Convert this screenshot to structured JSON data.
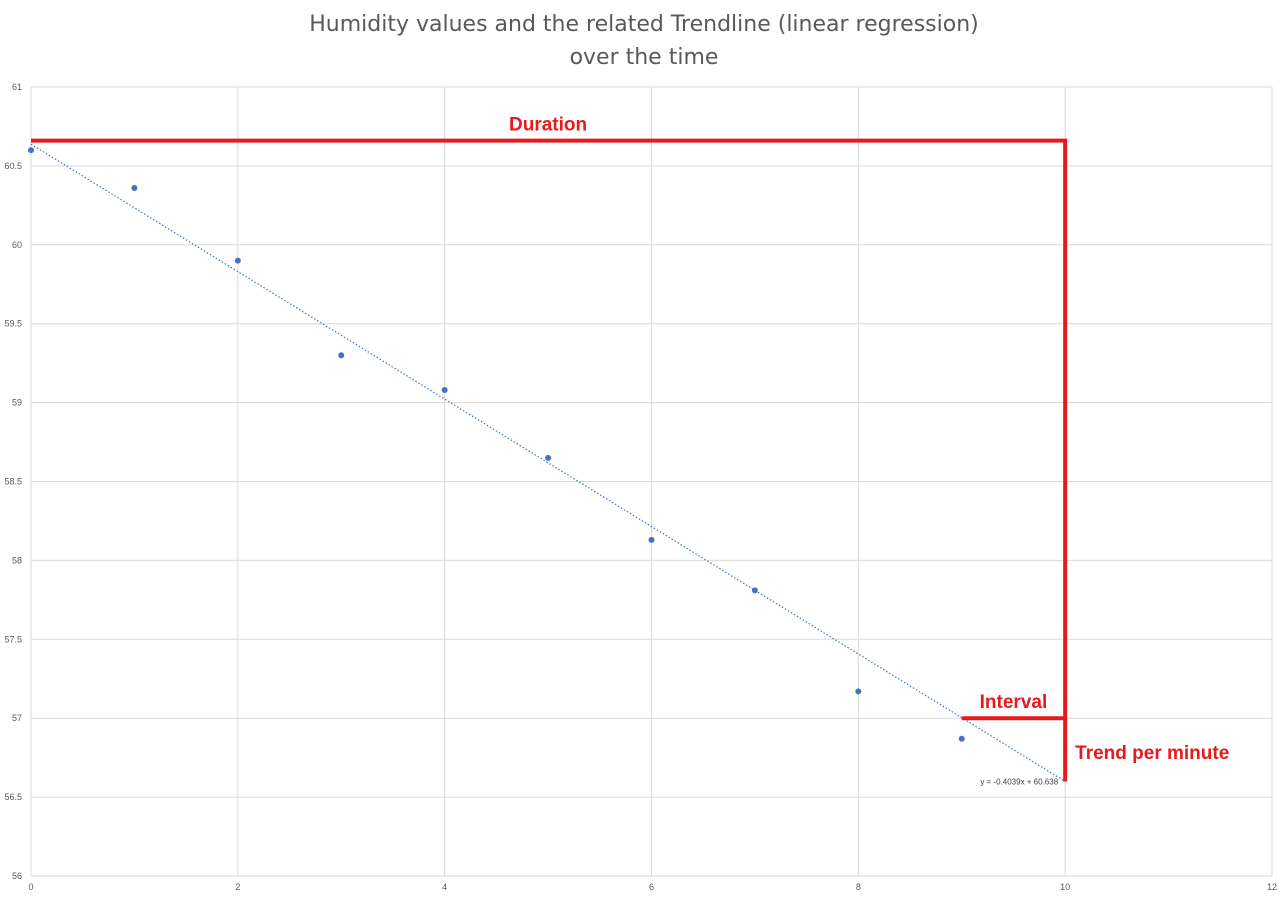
{
  "chart_data": {
    "type": "scatter",
    "title_lines": [
      "Humidity values and the related Trendline (linear regression)",
      "over the time"
    ],
    "xlabel": "",
    "ylabel": "",
    "xlim": [
      0,
      12
    ],
    "ylim": [
      56,
      61
    ],
    "x_ticks": [
      0,
      2,
      4,
      6,
      8,
      10,
      12
    ],
    "y_ticks": [
      56,
      56.5,
      57,
      57.5,
      58,
      58.5,
      59,
      59.5,
      60,
      60.5,
      61
    ],
    "grid": true,
    "legend": "none",
    "series": [
      {
        "points": [
          {
            "x": 0,
            "y": 60.6
          },
          {
            "x": 1,
            "y": 60.36
          },
          {
            "x": 2,
            "y": 59.9
          },
          {
            "x": 3,
            "y": 59.3
          },
          {
            "x": 4,
            "y": 59.08
          },
          {
            "x": 5,
            "y": 58.65
          },
          {
            "x": 6,
            "y": 58.13
          },
          {
            "x": 7,
            "y": 57.81
          },
          {
            "x": 8,
            "y": 57.17
          },
          {
            "x": 9,
            "y": 56.87
          }
        ],
        "color": "#4472c4"
      }
    ],
    "trendline": {
      "slope": -0.4039,
      "intercept": 60.638,
      "x_range": [
        0,
        10
      ],
      "equation_label": "y = -0.4039x + 60.638",
      "color": "#4472c4",
      "style": "dotted"
    },
    "annotations": {
      "color": "#e8191c",
      "duration": {
        "label": "Duration",
        "y": 60.66,
        "x_range": [
          0,
          10
        ]
      },
      "interval": {
        "label": "Interval",
        "y": 57,
        "x_range": [
          9,
          10
        ]
      },
      "trend_per_minute": {
        "label": "Trend per minute",
        "x": 10,
        "y_range": [
          56.6,
          60.66
        ]
      }
    }
  }
}
